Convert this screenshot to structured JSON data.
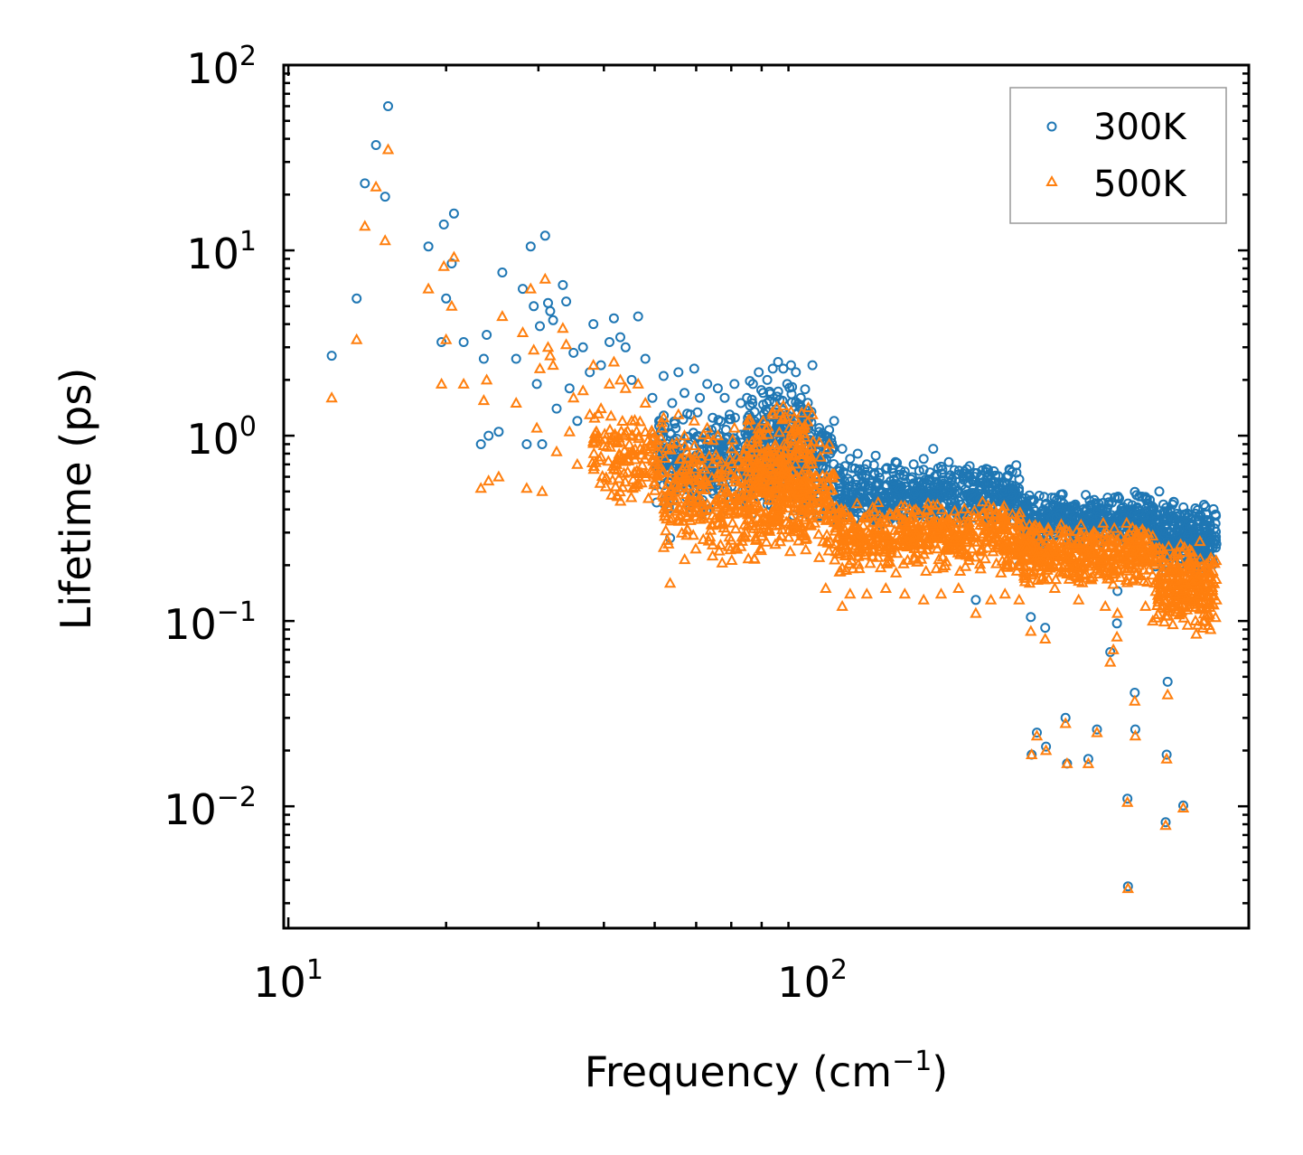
{
  "chart_data": {
    "type": "scatter",
    "xscale": "log",
    "yscale": "log",
    "xlim": [
      9.8,
      680
    ],
    "ylim": [
      0.0022,
      100
    ],
    "xlabel": "Frequency (cm⁻¹)",
    "xlabel_main": "Frequency (cm",
    "xlabel_sup": "−1",
    "xlabel_close": ")",
    "ylabel": "Lifetime (ps)",
    "xticks": [
      {
        "value": 10,
        "base": "10",
        "exp": "1"
      },
      {
        "value": 100,
        "base": "10",
        "exp": "2"
      }
    ],
    "yticks": [
      {
        "value": 100,
        "base": "10",
        "exp": "2"
      },
      {
        "value": 10,
        "base": "10",
        "exp": "1"
      },
      {
        "value": 1,
        "base": "10",
        "exp": "0"
      },
      {
        "value": 0.1,
        "base": "10",
        "exp": "−1"
      },
      {
        "value": 0.01,
        "base": "10",
        "exp": "−2"
      }
    ],
    "legend_position": "top-right",
    "series": [
      {
        "name": "300K",
        "color": "#1f77b4",
        "marker": "circle",
        "points": [
          [
            12.1,
            2.7
          ],
          [
            13.5,
            5.5
          ],
          [
            14.0,
            23.0
          ],
          [
            14.7,
            37.0
          ],
          [
            15.3,
            19.5
          ],
          [
            15.5,
            60.0
          ],
          [
            18.5,
            10.5
          ],
          [
            19.6,
            3.2
          ],
          [
            19.8,
            13.8
          ],
          [
            20.0,
            5.5
          ],
          [
            20.5,
            8.5
          ],
          [
            20.7,
            15.8
          ],
          [
            21.6,
            3.2
          ],
          [
            23.3,
            0.9
          ],
          [
            23.6,
            2.6
          ],
          [
            23.9,
            3.5
          ],
          [
            24.1,
            1.0
          ],
          [
            25.2,
            1.05
          ],
          [
            25.6,
            7.6
          ],
          [
            27.2,
            2.6
          ],
          [
            28.0,
            6.2
          ],
          [
            28.5,
            0.9
          ],
          [
            29.0,
            10.5
          ],
          [
            29.4,
            5.0
          ],
          [
            29.8,
            1.9
          ],
          [
            30.2,
            3.9
          ],
          [
            30.5,
            0.9
          ],
          [
            30.9,
            12.0
          ],
          [
            31.3,
            5.2
          ],
          [
            31.6,
            4.7
          ],
          [
            32.0,
            4.2
          ],
          [
            32.5,
            1.4
          ],
          [
            33.4,
            6.5
          ],
          [
            33.9,
            5.3
          ],
          [
            34.4,
            1.8
          ],
          [
            35.0,
            2.8
          ],
          [
            35.6,
            1.2
          ],
          [
            36.5,
            3.0
          ],
          [
            37.6,
            2.2
          ],
          [
            38.2,
            4.0
          ],
          [
            39.5,
            2.4
          ],
          [
            41.0,
            3.2
          ],
          [
            41.8,
            4.3
          ],
          [
            43.0,
            3.4
          ],
          [
            44.0,
            3.0
          ],
          [
            45.2,
            2.0
          ],
          [
            46.5,
            4.4
          ],
          [
            48.0,
            2.6
          ],
          [
            49.5,
            1.6
          ],
          [
            51.0,
            1.2
          ],
          [
            52.0,
            2.1
          ],
          [
            53.5,
            0.28
          ],
          [
            54.0,
            1.5
          ],
          [
            55.5,
            2.2
          ],
          [
            57.0,
            1.7
          ],
          [
            58.5,
            1.3
          ],
          [
            59.5,
            2.3
          ],
          [
            61.0,
            1.6
          ],
          [
            63.0,
            1.9
          ],
          [
            64.5,
            1.25
          ],
          [
            66.0,
            1.8
          ],
          [
            68.0,
            1.6
          ],
          [
            69.5,
            1.3
          ],
          [
            71.0,
            1.9
          ],
          [
            73.0,
            1.5
          ],
          [
            75.0,
            1.6
          ],
          [
            77.0,
            1.9
          ],
          [
            79.0,
            2.2
          ],
          [
            80.5,
            1.7
          ],
          [
            82.0,
            2.0
          ],
          [
            84.0,
            2.3
          ],
          [
            86.0,
            2.5
          ],
          [
            88.0,
            2.3
          ],
          [
            89.5,
            1.9
          ],
          [
            91.0,
            2.4
          ],
          [
            93.0,
            2.2
          ],
          [
            95.0,
            1.6
          ],
          [
            97.0,
            1.3
          ],
          [
            100.0,
            2.4
          ],
          [
            103.0,
            1.1
          ],
          [
            106.0,
            1.0
          ],
          [
            110.0,
            1.2
          ],
          [
            114.0,
            0.85
          ],
          [
            118.0,
            0.75
          ],
          [
            122.0,
            0.8
          ],
          [
            127.0,
            0.7
          ],
          [
            132.0,
            0.78
          ],
          [
            138.0,
            0.66
          ],
          [
            144.0,
            0.72
          ],
          [
            150.0,
            0.64
          ],
          [
            156.0,
            0.7
          ],
          [
            163.0,
            0.75
          ],
          [
            170.0,
            0.85
          ],
          [
            176.0,
            0.68
          ],
          [
            182.0,
            0.72
          ],
          [
            190.0,
            0.62
          ],
          [
            197.0,
            0.66
          ],
          [
            204.0,
            0.6
          ],
          [
            205.0,
            0.13
          ],
          [
            211.0,
            0.65
          ],
          [
            219.0,
            0.58
          ],
          [
            227.0,
            0.56
          ],
          [
            233.0,
            0.5
          ],
          [
            240.0,
            0.48
          ],
          [
            248.0,
            0.2
          ],
          [
            249.0,
            0.45
          ],
          [
            256.0,
            0.43
          ],
          [
            261.0,
            0.105
          ],
          [
            262.0,
            0.019
          ],
          [
            268.0,
            0.025
          ],
          [
            276.0,
            0.4
          ],
          [
            278.0,
            0.092
          ],
          [
            279.0,
            0.021
          ],
          [
            290.0,
            0.42
          ],
          [
            297.0,
            0.38
          ],
          [
            304.0,
            0.03
          ],
          [
            306.0,
            0.017
          ],
          [
            313.0,
            0.41
          ],
          [
            322.0,
            0.36
          ],
          [
            331.0,
            0.39
          ],
          [
            336.0,
            0.018
          ],
          [
            340.0,
            0.34
          ],
          [
            349.0,
            0.026
          ],
          [
            353.0,
            0.37
          ],
          [
            362.0,
            0.33
          ],
          [
            370.0,
            0.068
          ],
          [
            372.0,
            0.28
          ],
          [
            375.0,
            0.35
          ],
          [
            381.0,
            0.097
          ],
          [
            382.0,
            0.145
          ],
          [
            392.0,
            0.36
          ],
          [
            399.0,
            0.011
          ],
          [
            400.0,
            0.0037
          ],
          [
            405.0,
            0.32
          ],
          [
            412.0,
            0.041
          ],
          [
            413.0,
            0.026
          ],
          [
            418.0,
            0.3
          ],
          [
            432.0,
            0.34
          ],
          [
            446.0,
            0.28
          ],
          [
            459.0,
            0.5
          ],
          [
            470.0,
            0.36
          ],
          [
            472.0,
            0.0082
          ],
          [
            474.0,
            0.019
          ],
          [
            476.0,
            0.047
          ],
          [
            482.0,
            0.3
          ],
          [
            489.0,
            0.44
          ],
          [
            503.0,
            0.34
          ],
          [
            510.0,
            0.0101
          ],
          [
            520.0,
            0.29
          ],
          [
            540.0,
            0.25
          ],
          [
            560.0,
            0.24
          ],
          [
            575.0,
            0.22
          ],
          [
            590.0,
            0.26
          ]
        ],
        "bands": [
          {
            "x0": 50,
            "x1": 110,
            "ylo": 0.35,
            "yhi": 1.4,
            "n": 520
          },
          {
            "x0": 75,
            "x1": 100,
            "ylo": 0.6,
            "yhi": 2.0,
            "n": 160
          },
          {
            "x0": 110,
            "x1": 250,
            "ylo": 0.32,
            "yhi": 0.72,
            "n": 560
          },
          {
            "x0": 250,
            "x1": 450,
            "ylo": 0.25,
            "yhi": 0.5,
            "n": 420
          },
          {
            "x0": 450,
            "x1": 590,
            "ylo": 0.18,
            "yhi": 0.45,
            "n": 260
          }
        ]
      },
      {
        "name": "500K",
        "color": "#ff7f0e",
        "marker": "triangle",
        "points": [
          [
            12.1,
            1.6
          ],
          [
            13.5,
            3.3
          ],
          [
            14.0,
            13.5
          ],
          [
            14.7,
            22.0
          ],
          [
            15.3,
            11.3
          ],
          [
            15.5,
            35.0
          ],
          [
            18.5,
            6.2
          ],
          [
            19.6,
            1.9
          ],
          [
            19.8,
            8.2
          ],
          [
            20.0,
            3.3
          ],
          [
            20.5,
            5.0
          ],
          [
            20.7,
            9.2
          ],
          [
            21.6,
            1.9
          ],
          [
            23.3,
            0.52
          ],
          [
            23.6,
            1.55
          ],
          [
            23.9,
            2.0
          ],
          [
            24.1,
            0.57
          ],
          [
            25.2,
            0.6
          ],
          [
            25.6,
            4.4
          ],
          [
            27.2,
            1.5
          ],
          [
            28.0,
            3.6
          ],
          [
            28.5,
            0.52
          ],
          [
            29.0,
            6.2
          ],
          [
            29.4,
            2.9
          ],
          [
            29.8,
            1.1
          ],
          [
            30.2,
            2.3
          ],
          [
            30.5,
            0.5
          ],
          [
            30.9,
            7.0
          ],
          [
            31.3,
            3.0
          ],
          [
            31.6,
            2.7
          ],
          [
            32.0,
            2.4
          ],
          [
            32.5,
            0.82
          ],
          [
            33.4,
            3.8
          ],
          [
            33.9,
            3.1
          ],
          [
            34.4,
            1.05
          ],
          [
            35.0,
            1.6
          ],
          [
            35.6,
            0.7
          ],
          [
            36.5,
            1.75
          ],
          [
            37.6,
            1.3
          ],
          [
            38.2,
            2.4
          ],
          [
            39.5,
            1.4
          ],
          [
            41.0,
            1.9
          ],
          [
            41.8,
            2.5
          ],
          [
            43.0,
            2.0
          ],
          [
            44.0,
            1.8
          ],
          [
            45.2,
            1.2
          ],
          [
            46.5,
            1.9
          ],
          [
            48.0,
            1.5
          ],
          [
            49.5,
            0.95
          ],
          [
            51.0,
            0.7
          ],
          [
            52.0,
            1.25
          ],
          [
            53.5,
            0.16
          ],
          [
            54.0,
            0.9
          ],
          [
            55.5,
            1.3
          ],
          [
            57.0,
            1.0
          ],
          [
            59.5,
            1.2
          ],
          [
            61.0,
            0.8
          ],
          [
            63.0,
            1.1
          ],
          [
            66.0,
            1.0
          ],
          [
            71.0,
            1.1
          ],
          [
            75.0,
            0.9
          ],
          [
            80.5,
            1.2
          ],
          [
            84.0,
            1.3
          ],
          [
            88.0,
            1.45
          ],
          [
            91.0,
            1.35
          ],
          [
            95.0,
            0.9
          ],
          [
            100.0,
            1.3
          ],
          [
            103.0,
            0.22
          ],
          [
            106.0,
            0.15
          ],
          [
            110.0,
            0.62
          ],
          [
            114.0,
            0.12
          ],
          [
            118.0,
            0.14
          ],
          [
            127.0,
            0.14
          ],
          [
            138.0,
            0.15
          ],
          [
            150.0,
            0.14
          ],
          [
            163.0,
            0.13
          ],
          [
            170.0,
            0.42
          ],
          [
            176.0,
            0.14
          ],
          [
            190.0,
            0.15
          ],
          [
            205.0,
            0.11
          ],
          [
            219.0,
            0.13
          ],
          [
            233.0,
            0.14
          ],
          [
            248.0,
            0.13
          ],
          [
            261.0,
            0.088
          ],
          [
            262.0,
            0.019
          ],
          [
            268.0,
            0.024
          ],
          [
            278.0,
            0.08
          ],
          [
            279.0,
            0.02
          ],
          [
            290.0,
            0.15
          ],
          [
            304.0,
            0.028
          ],
          [
            306.0,
            0.017
          ],
          [
            322.0,
            0.13
          ],
          [
            336.0,
            0.017
          ],
          [
            349.0,
            0.025
          ],
          [
            362.0,
            0.12
          ],
          [
            370.0,
            0.06
          ],
          [
            375.0,
            0.07
          ],
          [
            381.0,
            0.082
          ],
          [
            382.0,
            0.11
          ],
          [
            399.0,
            0.0105
          ],
          [
            400.0,
            0.0036
          ],
          [
            412.0,
            0.037
          ],
          [
            413.0,
            0.024
          ],
          [
            432.0,
            0.12
          ],
          [
            446.0,
            0.1
          ],
          [
            459.0,
            0.14
          ],
          [
            472.0,
            0.0079
          ],
          [
            474.0,
            0.018
          ],
          [
            476.0,
            0.04
          ],
          [
            489.0,
            0.12
          ],
          [
            503.0,
            0.11
          ],
          [
            510.0,
            0.0098
          ],
          [
            520.0,
            0.095
          ],
          [
            540.0,
            0.085
          ],
          [
            560.0,
            0.1
          ],
          [
            575.0,
            0.09
          ],
          [
            590.0,
            0.13
          ]
        ],
        "bands": [
          {
            "x0": 38,
            "x1": 52,
            "ylo": 0.42,
            "yhi": 1.4,
            "n": 140
          },
          {
            "x0": 52,
            "x1": 110,
            "ylo": 0.2,
            "yhi": 1.1,
            "n": 520
          },
          {
            "x0": 75,
            "x1": 100,
            "ylo": 0.3,
            "yhi": 1.6,
            "n": 180
          },
          {
            "x0": 110,
            "x1": 250,
            "ylo": 0.18,
            "yhi": 0.45,
            "n": 520
          },
          {
            "x0": 250,
            "x1": 450,
            "ylo": 0.15,
            "yhi": 0.35,
            "n": 420
          },
          {
            "x0": 450,
            "x1": 590,
            "ylo": 0.09,
            "yhi": 0.28,
            "n": 260
          }
        ]
      }
    ]
  }
}
